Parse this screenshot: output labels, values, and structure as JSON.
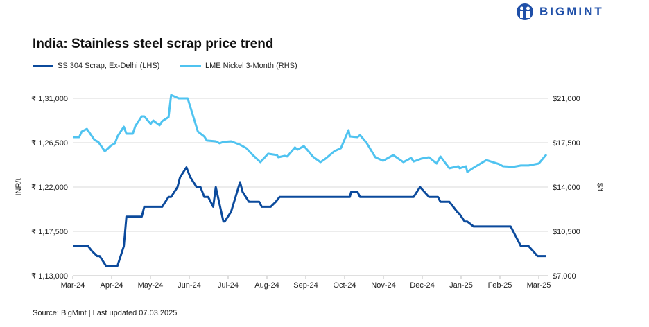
{
  "brand": {
    "name": "BIGMINT",
    "color": "#1f4fa8"
  },
  "chart_data": {
    "type": "line",
    "title": "India: Stainless steel scrap price trend",
    "ylabel": "INR/t",
    "y2label": "$/t",
    "ylim": [
      113000,
      131000
    ],
    "y2lim": [
      7000,
      21000
    ],
    "yticks": [
      "₹ 1,13,000",
      "₹ 1,17,500",
      "₹ 1,22,000",
      "₹ 1,26,500",
      "₹ 1,31,000"
    ],
    "y2ticks": [
      "$7,000",
      "$10,500",
      "$14,000",
      "$17,500",
      "$21,000"
    ],
    "xticks": [
      "Mar-24",
      "Apr-24",
      "May-24",
      "Jun-24",
      "Jul-24",
      "Aug-24",
      "Sep-24",
      "Oct-24",
      "Nov-24",
      "Dec-24",
      "Jan-25",
      "Feb-25",
      "Mar-25"
    ],
    "grid": true,
    "legend": "top-left",
    "series": [
      {
        "name": "SS 304 Scrap, Ex-Delhi (LHS)",
        "axis": "left",
        "color": "#0b4a9c",
        "points": [
          [
            "2024-03-01",
            116000
          ],
          [
            "2024-03-13",
            116000
          ],
          [
            "2024-03-16",
            115500
          ],
          [
            "2024-03-20",
            115000
          ],
          [
            "2024-03-22",
            115000
          ],
          [
            "2024-03-27",
            114000
          ],
          [
            "2024-04-05",
            114000
          ],
          [
            "2024-04-10",
            116000
          ],
          [
            "2024-04-12",
            119000
          ],
          [
            "2024-04-24",
            119000
          ],
          [
            "2024-04-26",
            120000
          ],
          [
            "2024-05-10",
            120000
          ],
          [
            "2024-05-15",
            121000
          ],
          [
            "2024-05-17",
            121000
          ],
          [
            "2024-05-22",
            122000
          ],
          [
            "2024-05-24",
            123000
          ],
          [
            "2024-05-29",
            124000
          ],
          [
            "2024-06-01",
            123000
          ],
          [
            "2024-06-06",
            122000
          ],
          [
            "2024-06-09",
            122000
          ],
          [
            "2024-06-12",
            121000
          ],
          [
            "2024-06-15",
            121000
          ],
          [
            "2024-06-19",
            120000
          ],
          [
            "2024-06-21",
            122000
          ],
          [
            "2024-06-27",
            118500
          ],
          [
            "2024-06-28",
            118500
          ],
          [
            "2024-07-03",
            119500
          ],
          [
            "2024-07-10",
            122500
          ],
          [
            "2024-07-12",
            121500
          ],
          [
            "2024-07-17",
            120500
          ],
          [
            "2024-07-25",
            120500
          ],
          [
            "2024-07-27",
            120000
          ],
          [
            "2024-08-03",
            120000
          ],
          [
            "2024-08-07",
            120500
          ],
          [
            "2024-08-10",
            121000
          ],
          [
            "2024-10-04",
            121000
          ],
          [
            "2024-10-05",
            121500
          ],
          [
            "2024-10-10",
            121500
          ],
          [
            "2024-10-12",
            121000
          ],
          [
            "2024-11-23",
            121000
          ],
          [
            "2024-11-28",
            122000
          ],
          [
            "2024-12-05",
            121000
          ],
          [
            "2024-12-12",
            121000
          ],
          [
            "2024-12-14",
            120500
          ],
          [
            "2024-12-21",
            120500
          ],
          [
            "2024-12-27",
            119500
          ],
          [
            "2024-12-29",
            119250
          ],
          [
            "2025-01-02",
            118500
          ],
          [
            "2025-01-04",
            118500
          ],
          [
            "2025-01-09",
            118000
          ],
          [
            "2025-02-07",
            118000
          ],
          [
            "2025-02-15",
            116000
          ],
          [
            "2025-02-21",
            116000
          ],
          [
            "2025-02-28",
            115000
          ],
          [
            "2025-03-07",
            115000
          ]
        ]
      },
      {
        "name": "LME Nickel 3-Month (RHS)",
        "axis": "right",
        "color": "#4fc3f0",
        "points": [
          [
            "2024-03-01",
            17940
          ],
          [
            "2024-03-06",
            17940
          ],
          [
            "2024-03-08",
            18380
          ],
          [
            "2024-03-12",
            18590
          ],
          [
            "2024-03-18",
            17720
          ],
          [
            "2024-03-21",
            17560
          ],
          [
            "2024-03-26",
            16840
          ],
          [
            "2024-03-27",
            16900
          ],
          [
            "2024-03-31",
            17280
          ],
          [
            "2024-04-03",
            17450
          ],
          [
            "2024-04-05",
            17990
          ],
          [
            "2024-04-10",
            18760
          ],
          [
            "2024-04-12",
            18210
          ],
          [
            "2024-04-17",
            18210
          ],
          [
            "2024-04-19",
            18810
          ],
          [
            "2024-04-24",
            19580
          ],
          [
            "2024-04-26",
            19580
          ],
          [
            "2024-05-01",
            18980
          ],
          [
            "2024-05-03",
            19250
          ],
          [
            "2024-05-08",
            18870
          ],
          [
            "2024-05-10",
            19200
          ],
          [
            "2024-05-15",
            19520
          ],
          [
            "2024-05-17",
            21270
          ],
          [
            "2024-05-23",
            21000
          ],
          [
            "2024-05-30",
            21000
          ],
          [
            "2024-06-07",
            18380
          ],
          [
            "2024-06-12",
            17990
          ],
          [
            "2024-06-14",
            17670
          ],
          [
            "2024-06-21",
            17610
          ],
          [
            "2024-06-24",
            17450
          ],
          [
            "2024-06-27",
            17560
          ],
          [
            "2024-07-03",
            17610
          ],
          [
            "2024-07-10",
            17340
          ],
          [
            "2024-07-15",
            17060
          ],
          [
            "2024-07-20",
            16520
          ],
          [
            "2024-07-26",
            15970
          ],
          [
            "2024-08-01",
            16630
          ],
          [
            "2024-08-08",
            16520
          ],
          [
            "2024-08-09",
            16350
          ],
          [
            "2024-08-14",
            16460
          ],
          [
            "2024-08-16",
            16410
          ],
          [
            "2024-08-22",
            17120
          ],
          [
            "2024-08-24",
            16950
          ],
          [
            "2024-08-29",
            17230
          ],
          [
            "2024-09-01",
            16900
          ],
          [
            "2024-09-05",
            16410
          ],
          [
            "2024-09-11",
            15970
          ],
          [
            "2024-09-15",
            16240
          ],
          [
            "2024-09-22",
            16840
          ],
          [
            "2024-09-27",
            17060
          ],
          [
            "2024-10-03",
            18490
          ],
          [
            "2024-10-04",
            17990
          ],
          [
            "2024-10-10",
            17940
          ],
          [
            "2024-10-12",
            18100
          ],
          [
            "2024-10-17",
            17500
          ],
          [
            "2024-10-24",
            16350
          ],
          [
            "2024-10-30",
            16080
          ],
          [
            "2024-11-07",
            16520
          ],
          [
            "2024-11-15",
            15970
          ],
          [
            "2024-11-21",
            16300
          ],
          [
            "2024-11-23",
            16020
          ],
          [
            "2024-11-29",
            16240
          ],
          [
            "2024-12-05",
            16350
          ],
          [
            "2024-12-11",
            15860
          ],
          [
            "2024-12-14",
            16410
          ],
          [
            "2024-12-21",
            15480
          ],
          [
            "2024-12-28",
            15640
          ],
          [
            "2024-12-29",
            15480
          ],
          [
            "2025-01-03",
            15640
          ],
          [
            "2025-01-04",
            15200
          ],
          [
            "2025-01-09",
            15530
          ],
          [
            "2025-01-19",
            16130
          ],
          [
            "2025-01-29",
            15810
          ],
          [
            "2025-02-01",
            15640
          ],
          [
            "2025-02-09",
            15590
          ],
          [
            "2025-02-15",
            15700
          ],
          [
            "2025-02-21",
            15700
          ],
          [
            "2025-03-01",
            15860
          ],
          [
            "2025-03-07",
            16570
          ]
        ]
      }
    ]
  },
  "footer": {
    "source": "Source: BigMint | Last updated 07.03.2025"
  }
}
